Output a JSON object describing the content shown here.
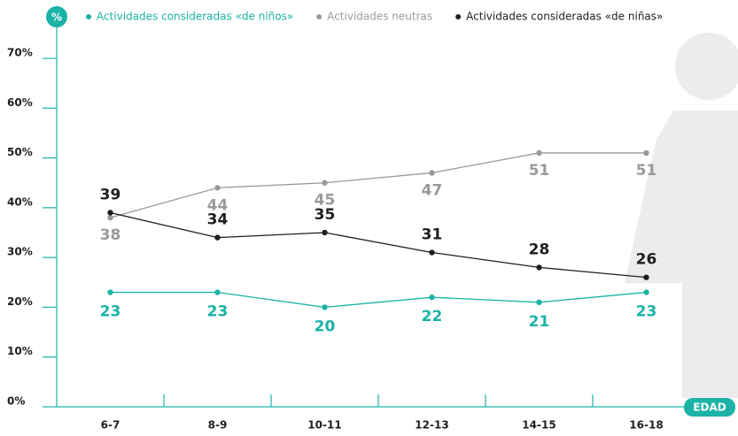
{
  "chart_data": {
    "type": "line",
    "x_label": "EDAD",
    "y_label": "%",
    "categories": [
      "6-7",
      "8-9",
      "10-11",
      "12-13",
      "14-15",
      "16-18"
    ],
    "series": [
      {
        "name": "Actividades consideradas «de niños»",
        "color": "#1ab3a6",
        "values": [
          23,
          23,
          20,
          22,
          21,
          23
        ]
      },
      {
        "name": "Actividades neutras",
        "color": "#9a9a9a",
        "values": [
          38,
          44,
          45,
          47,
          51,
          51
        ]
      },
      {
        "name": "Actividades consideradas «de niñas»",
        "color": "#1e1e1e",
        "values": [
          39,
          34,
          35,
          31,
          28,
          26
        ]
      }
    ],
    "ylim": [
      0,
      70
    ],
    "yticks": [
      {
        "value": 0,
        "label": "0%"
      },
      {
        "value": 10,
        "label": "10%"
      },
      {
        "value": 20,
        "label": "20%"
      },
      {
        "value": 30,
        "label": "30%"
      },
      {
        "value": 40,
        "label": "40%"
      },
      {
        "value": 50,
        "label": "50%"
      },
      {
        "value": 60,
        "label": "60%"
      },
      {
        "value": 70,
        "label": "70%"
      }
    ],
    "legend": "top"
  }
}
